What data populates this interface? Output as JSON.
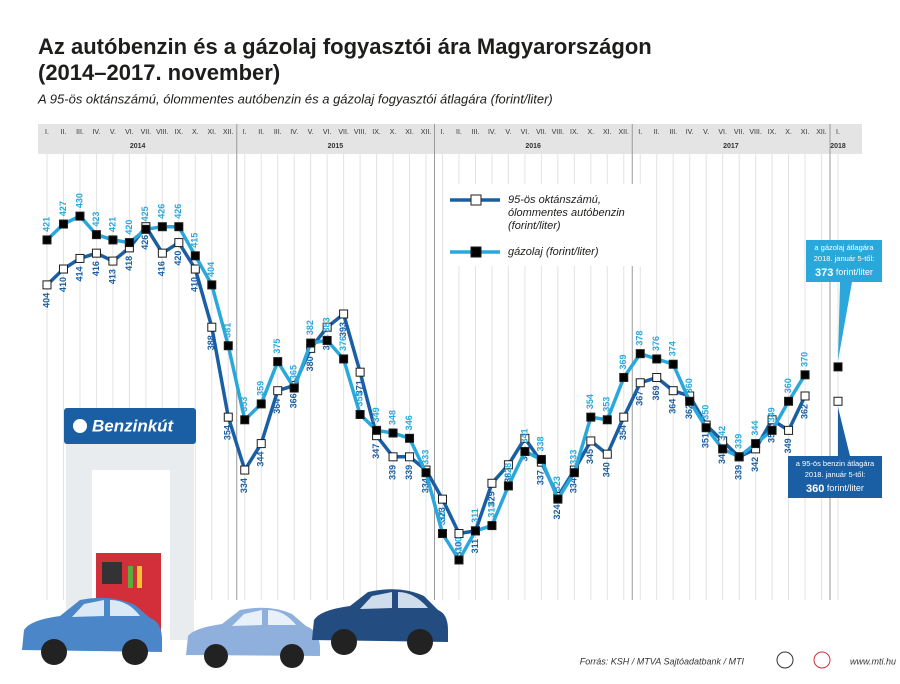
{
  "chart_data": {
    "type": "line",
    "title": [
      "Az autóbenzin és a gázolaj fogyasztói ára Magyarországon",
      "(2014–2017. november)"
    ],
    "subtitle": "A 95-ös oktánszámú, ólommentes autóbenzin és a gázolaj fogyasztói átlagára (forint/liter)",
    "categories": [
      "I.",
      "II.",
      "III.",
      "IV.",
      "V.",
      "VI.",
      "VII.",
      "VIII.",
      "IX.",
      "X.",
      "XI.",
      "XII.",
      "I.",
      "II.",
      "III.",
      "IV.",
      "V.",
      "VI.",
      "VII.",
      "VIII.",
      "IX.",
      "X.",
      "XI.",
      "XII.",
      "I.",
      "II.",
      "III.",
      "IV.",
      "V.",
      "VI.",
      "VII.",
      "VIII.",
      "IX.",
      "X.",
      "XI.",
      "XII.",
      "I.",
      "II.",
      "III.",
      "IV.",
      "V.",
      "VI.",
      "VII.",
      "VIII.",
      "IX.",
      "X.",
      "XI.",
      "XII.",
      "I."
    ],
    "years": [
      "2014",
      "2015",
      "2016",
      "2017",
      "2018"
    ],
    "ylim": [
      255,
      455
    ],
    "series": [
      {
        "name": [
          "95-ös oktánszámú,",
          "ólommentes autóbenzin",
          "(forint/liter)"
        ],
        "color": "#1a5fa3",
        "marker_fill": "#ffffff",
        "values": [
          404,
          410,
          414,
          416,
          413,
          418,
          426,
          416,
          420,
          410,
          388,
          354,
          334,
          344,
          364,
          366,
          380,
          388,
          393,
          371,
          347,
          339,
          339,
          334,
          323,
          310,
          311,
          329,
          336,
          346,
          337,
          324,
          334,
          345,
          340,
          354,
          367,
          369,
          364,
          362,
          351,
          345,
          339,
          342,
          353,
          349,
          362,
          null,
          360
        ]
      },
      {
        "name": [
          "gázolaj (forint/liter)"
        ],
        "color": "#2aa8dc",
        "marker_fill": "#000000",
        "values": [
          421,
          427,
          430,
          423,
          421,
          420,
          425,
          426,
          426,
          415,
          404,
          381,
          353,
          359,
          375,
          365,
          382,
          383,
          376,
          355,
          349,
          348,
          346,
          333,
          310,
          300,
          311,
          313,
          328,
          341,
          338,
          323,
          333,
          354,
          353,
          369,
          378,
          376,
          374,
          360,
          350,
          342,
          339,
          344,
          349,
          360,
          370,
          null,
          373
        ]
      }
    ],
    "callouts": [
      {
        "series": 1,
        "lines": [
          "a gázolaj átlagára",
          "2018. január 5-től:"
        ],
        "unit": "forint/liter"
      },
      {
        "series": 0,
        "lines": [
          "a 95-ös benzin átlagára",
          "2018. január 5-től:"
        ],
        "unit": "forint/liter"
      }
    ]
  },
  "station_sign": "Benzinkút",
  "source": "Forrás: KSH / MTVA Sajtóadatbank / MTI",
  "website": "www.mti.hu"
}
